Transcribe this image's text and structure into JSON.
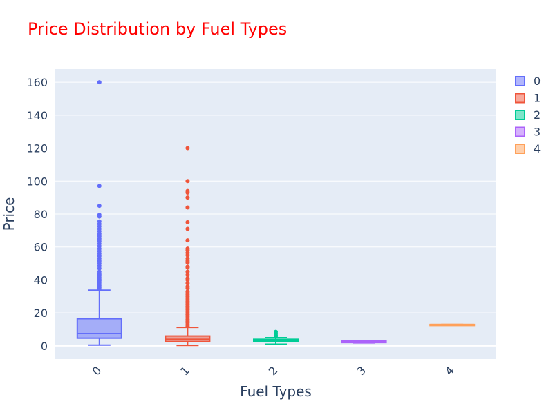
{
  "chart_data": {
    "type": "box",
    "title": "Price Distribution by Fuel Types",
    "xlabel": "Fuel Types",
    "ylabel": "Price",
    "ylim": [
      -8,
      168
    ],
    "yticks": [
      0,
      20,
      40,
      60,
      80,
      100,
      120,
      140,
      160
    ],
    "categories": [
      "0",
      "1",
      "2",
      "3",
      "4"
    ],
    "grid": true,
    "legend_position": "top-right",
    "series": [
      {
        "name": "0",
        "color": "#636efa",
        "category": "0",
        "min": 0.5,
        "q1": 4.7,
        "median": 7.5,
        "q3": 16.5,
        "upper_fence": 33.8,
        "outliers": [
          34.5,
          35.5,
          36.5,
          37.5,
          38.5,
          39.5,
          40.5,
          41.5,
          42.5,
          43.5,
          45,
          47,
          48.5,
          50,
          51.5,
          53,
          54.5,
          56,
          57.5,
          59,
          60.5,
          62,
          63.5,
          65,
          66.5,
          68,
          69.5,
          71,
          72.5,
          74,
          75.5,
          78.5,
          79.5,
          85,
          97,
          160
        ]
      },
      {
        "name": "1",
        "color": "#ef553b",
        "category": "1",
        "min": 0.3,
        "q1": 2.6,
        "median": 4,
        "q3": 6,
        "upper_fence": 11.2,
        "outliers": [
          12,
          13,
          14,
          15,
          16,
          17,
          18,
          19,
          20,
          21,
          22,
          23,
          24,
          25,
          26,
          27,
          28,
          29,
          30,
          31,
          32,
          33,
          35,
          36,
          38,
          40,
          41,
          43,
          45,
          47.5,
          48,
          50.5,
          51.5,
          53,
          55,
          56.5,
          58,
          59,
          64,
          71,
          75,
          84,
          90,
          93,
          94,
          100,
          120
        ]
      },
      {
        "name": "2",
        "color": "#00cc96",
        "category": "2",
        "min": 1,
        "q1": 2.8,
        "median": 3.5,
        "q3": 4,
        "upper_fence": 5,
        "outliers": [
          5.8,
          6.5,
          7.5,
          8.5
        ]
      },
      {
        "name": "3",
        "color": "#ab63fa",
        "category": "3",
        "min": 1.8,
        "q1": 2,
        "median": 2.5,
        "q3": 3,
        "upper_fence": 3.2,
        "outliers": []
      },
      {
        "name": "4",
        "color": "#ffa15a",
        "category": "4",
        "min": 13,
        "q1": 13,
        "median": 13,
        "q3": 13,
        "upper_fence": 13,
        "outliers": []
      }
    ]
  }
}
